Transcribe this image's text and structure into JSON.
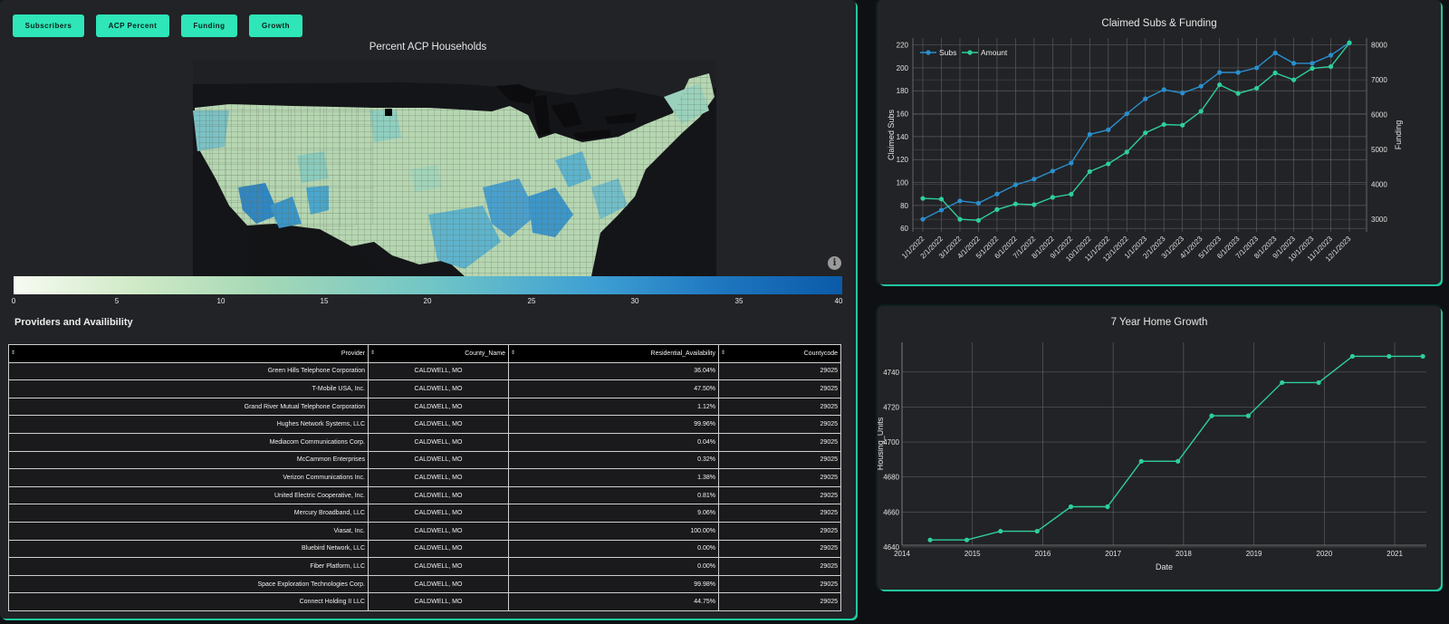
{
  "colors": {
    "accent": "#2ee6b8",
    "subs_line": "#2a8fce",
    "amount_line": "#2ecf9a",
    "growth_line": "#2ecf9a"
  },
  "buttons": [
    "Subscribers",
    "ACP Percent",
    "Funding",
    "Growth"
  ],
  "map": {
    "title": "Percent ACP Households",
    "colorbar_ticks": [
      "0",
      "5",
      "10",
      "15",
      "20",
      "25",
      "30",
      "35",
      "40"
    ],
    "colorbar_range": [
      0,
      40
    ],
    "info_icon": "i"
  },
  "providers": {
    "title": "Providers and Availibility",
    "sort_icon": "⇕",
    "columns": [
      "Provider",
      "County_Name",
      "Residential_Availability",
      "Countycode"
    ],
    "rows": [
      [
        "Green Hills Telephone Corporation",
        "CALDWELL, MO",
        "36.04%",
        "29025"
      ],
      [
        "T-Mobile USA, Inc.",
        "CALDWELL, MO",
        "47.50%",
        "29025"
      ],
      [
        "Grand River Mutual Telephone Corporation",
        "CALDWELL, MO",
        "1.12%",
        "29025"
      ],
      [
        "Hughes Network Systems, LLC",
        "CALDWELL, MO",
        "99.96%",
        "29025"
      ],
      [
        "Mediacom Communications Corp.",
        "CALDWELL, MO",
        "0.04%",
        "29025"
      ],
      [
        "McCammon Enterprises",
        "CALDWELL, MO",
        "0.32%",
        "29025"
      ],
      [
        "Verizon Communications Inc.",
        "CALDWELL, MO",
        "1.38%",
        "29025"
      ],
      [
        "United Electric Cooperative, Inc.",
        "CALDWELL, MO",
        "0.81%",
        "29025"
      ],
      [
        "Mercury Broadband, LLC",
        "CALDWELL, MO",
        "9.06%",
        "29025"
      ],
      [
        "Viasat, Inc.",
        "CALDWELL, MO",
        "100.00%",
        "29025"
      ],
      [
        "Bluebird Network, LLC",
        "CALDWELL, MO",
        "0.00%",
        "29025"
      ],
      [
        "Fiber Platform, LLC",
        "CALDWELL, MO",
        "0.00%",
        "29025"
      ],
      [
        "Space Exploration Technologies Corp.",
        "CALDWELL, MO",
        "99.98%",
        "29025"
      ],
      [
        "Connect Holding II LLC",
        "CALDWELL, MO",
        "44.75%",
        "29025"
      ]
    ]
  },
  "chart_data": [
    {
      "type": "line",
      "title": "Claimed Subs & Funding",
      "x": [
        "1/1/2022",
        "2/1/2022",
        "3/1/2022",
        "4/1/2022",
        "5/1/2022",
        "6/1/2022",
        "7/1/2022",
        "8/1/2022",
        "9/1/2022",
        "10/1/2022",
        "11/1/2022",
        "12/1/2022",
        "1/1/2023",
        "2/1/2023",
        "3/1/2023",
        "4/1/2023",
        "5/1/2023",
        "6/1/2023",
        "7/1/2023",
        "8/1/2023",
        "9/1/2023",
        "10/1/2023",
        "11/1/2023",
        "12/1/2023"
      ],
      "series": [
        {
          "name": "Subs",
          "axis": "left",
          "values": [
            68,
            76,
            84,
            82,
            90,
            98,
            103,
            110,
            117,
            142,
            146,
            160,
            173,
            181,
            178,
            184,
            196,
            196,
            200,
            213,
            204,
            204,
            211,
            222
          ]
        },
        {
          "name": "Amount",
          "axis": "right",
          "values": [
            3600,
            3580,
            3000,
            2970,
            3280,
            3440,
            3420,
            3630,
            3720,
            4370,
            4590,
            4930,
            5480,
            5720,
            5700,
            6100,
            6860,
            6610,
            6760,
            7200,
            7000,
            7330,
            7380,
            8060
          ]
        }
      ],
      "ylabel": "Claimed Subs",
      "y2label": "Funding",
      "ylim": [
        57,
        226
      ],
      "y2lim": [
        2640,
        8200
      ],
      "yticks": [
        60,
        80,
        100,
        120,
        140,
        160,
        180,
        200,
        220
      ],
      "y2ticks": [
        3000,
        4000,
        5000,
        6000,
        7000,
        8000
      ],
      "grid": true,
      "legend": "top-left"
    },
    {
      "type": "line",
      "title": "7 Year Home Growth",
      "x": [
        2014.4,
        2014.92,
        2015.4,
        2015.92,
        2016.4,
        2016.92,
        2017.4,
        2017.92,
        2018.4,
        2018.92,
        2019.4,
        2019.92,
        2020.4,
        2020.92,
        2021.4
      ],
      "series": [
        {
          "name": "Housing_Units",
          "values": [
            4644,
            4644,
            4649,
            4649,
            4663,
            4663,
            4689,
            4689,
            4715,
            4715,
            4734,
            4734,
            4749,
            4749,
            4749
          ]
        }
      ],
      "xlabel": "Date",
      "ylabel": "Housing_Units",
      "xlim": [
        2014,
        2021.45
      ],
      "ylim": [
        4641,
        4757
      ],
      "xticks": [
        2014,
        2015,
        2016,
        2017,
        2018,
        2019,
        2020,
        2021
      ],
      "yticks": [
        4640,
        4660,
        4680,
        4700,
        4720,
        4740
      ],
      "grid": true
    }
  ]
}
